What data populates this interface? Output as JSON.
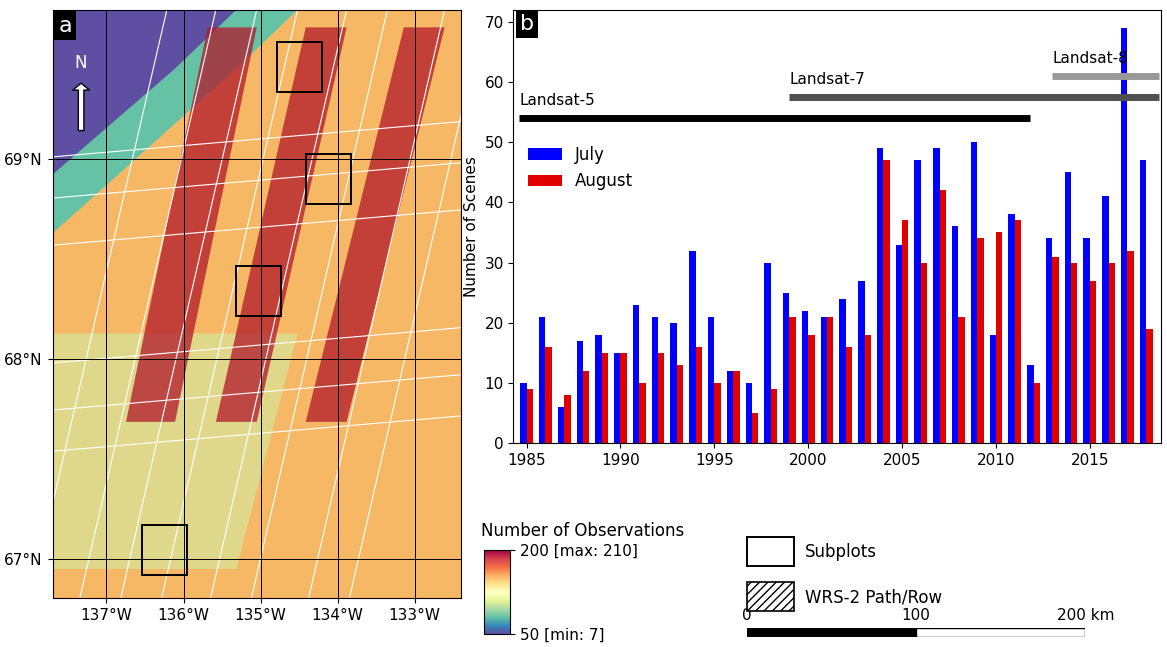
{
  "chart_data": {
    "type": "bar",
    "panel": "b",
    "y_label": "Number of Scenes",
    "x": [
      1985,
      1986,
      1987,
      1988,
      1989,
      1990,
      1991,
      1992,
      1993,
      1994,
      1995,
      1996,
      1997,
      1998,
      1999,
      2000,
      2001,
      2002,
      2003,
      2004,
      2005,
      2006,
      2007,
      2008,
      2009,
      2010,
      2011,
      2012,
      2013,
      2014,
      2015,
      2016,
      2017,
      2018
    ],
    "series": [
      {
        "name": "July",
        "color": "#0000ff",
        "values": [
          10,
          21,
          6,
          17,
          18,
          15,
          23,
          21,
          20,
          32,
          21,
          12,
          10,
          30,
          25,
          22,
          21,
          24,
          27,
          49,
          33,
          47,
          49,
          36,
          50,
          18,
          38,
          13,
          34,
          45,
          34,
          41,
          69,
          47
        ]
      },
      {
        "name": "August",
        "color": "#e00000",
        "values": [
          9,
          16,
          8,
          12,
          15,
          15,
          10,
          15,
          13,
          16,
          10,
          12,
          5,
          9,
          21,
          18,
          21,
          16,
          18,
          47,
          37,
          30,
          42,
          21,
          34,
          35,
          37,
          10,
          31,
          30,
          27,
          30,
          32,
          19
        ]
      }
    ],
    "xlim": [
      1984.3,
      2018.8
    ],
    "ylim": [
      0,
      72
    ],
    "xticks": [
      1985,
      1990,
      1995,
      2000,
      2005,
      2010,
      2015
    ],
    "yticks": [
      0,
      10,
      20,
      30,
      40,
      50,
      60,
      70
    ],
    "grid": false,
    "legend": "upper left",
    "missions": [
      {
        "name": "Landsat-5",
        "start": 1984.6,
        "end": 2011.8,
        "level": 54,
        "color": "#000000"
      },
      {
        "name": "Landsat-7",
        "start": 1999,
        "end": 2018.7,
        "level": 57.5,
        "color": "#505050"
      },
      {
        "name": "Landsat-8",
        "start": 2013,
        "end": 2018.7,
        "level": 61,
        "color": "#999999"
      }
    ]
  },
  "map": {
    "panel": "a",
    "north": "N",
    "xlim": [
      -137.7,
      -132.4
    ],
    "ylim": [
      66.8,
      69.75
    ],
    "xticks": [
      {
        "value": -137,
        "label": "137°W"
      },
      {
        "value": -136,
        "label": "136°W"
      },
      {
        "value": -135,
        "label": "135°W"
      },
      {
        "value": -134,
        "label": "134°W"
      },
      {
        "value": -133,
        "label": "133°W"
      }
    ],
    "yticks": [
      {
        "value": 67,
        "label": "67°N"
      },
      {
        "value": 68,
        "label": "68°N"
      },
      {
        "value": 69,
        "label": "69°N"
      }
    ],
    "grid": true,
    "colorbar": {
      "label": "Number of Observations",
      "range": [
        50,
        200
      ],
      "ticks": [
        {
          "value": 200,
          "label": "200 [max: 210]"
        },
        {
          "value": 50,
          "label": "50 [min: 7]"
        }
      ]
    },
    "legend": [
      {
        "label": "Subplots"
      },
      {
        "label": "WRS-2 Path/Row"
      }
    ],
    "scale_bar": {
      "ticks": [
        0,
        100,
        {
          "value": 200,
          "label": "200 km"
        }
      ]
    }
  }
}
